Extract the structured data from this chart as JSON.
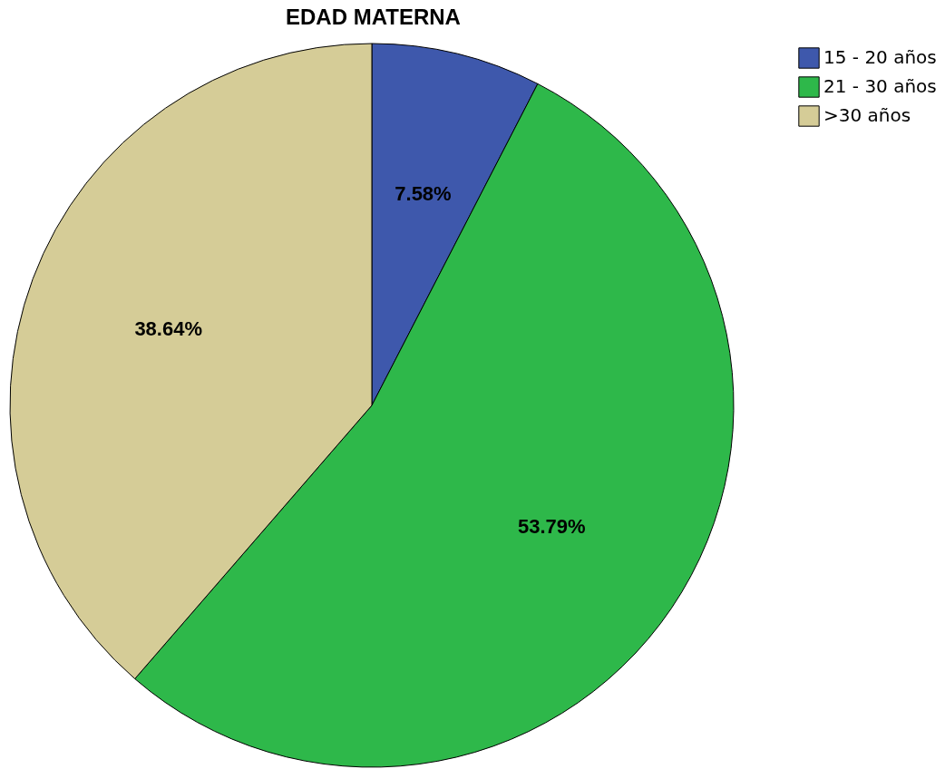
{
  "chart_data": {
    "type": "pie",
    "title": "EDAD MATERNA",
    "categories": [
      "15 - 20 años",
      "21 - 30 años",
      ">30 años"
    ],
    "values": [
      7.58,
      53.79,
      38.64
    ],
    "colors": [
      "#3e58ac",
      "#2eb84a",
      "#d5cc97"
    ],
    "value_labels": [
      "7.58%",
      "53.79%",
      "38.64%"
    ],
    "legend": "top right"
  }
}
